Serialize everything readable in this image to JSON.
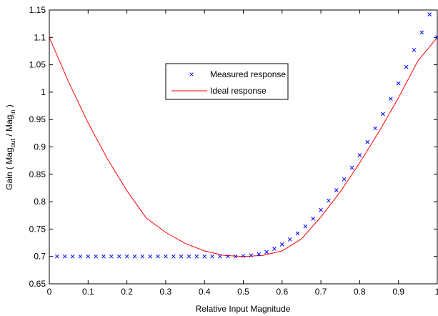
{
  "chart_data": {
    "type": "line",
    "xlabel": "Relative Input Magnitude",
    "ylabel": {
      "prefix": "Gain ( Mag",
      "sub1": "out",
      "middle": " / Mag",
      "sub2": "in",
      "suffix": " )"
    },
    "xlim": [
      0,
      1
    ],
    "ylim": [
      0.65,
      1.15
    ],
    "xticks": [
      0,
      0.1,
      0.2,
      0.3,
      0.4,
      0.5,
      0.6,
      0.7,
      0.8,
      0.9,
      1
    ],
    "xtick_labels": [
      "0",
      "0.1",
      "0.2",
      "0.3",
      "0.4",
      "0.5",
      "0.6",
      "0.7",
      "0.8",
      "0.9",
      "1"
    ],
    "yticks": [
      0.65,
      0.7,
      0.75,
      0.8,
      0.85,
      0.9,
      0.95,
      1,
      1.05,
      1.1,
      1.15
    ],
    "ytick_labels": [
      "0.65",
      "0.7",
      "0.75",
      "0.8",
      "0.85",
      "0.9",
      "0.95",
      "1",
      "1.05",
      "1.1",
      "1.15"
    ],
    "grid": false,
    "legend_position": "upper-center",
    "series": [
      {
        "name": "Measured response",
        "style": "markers-x",
        "color": "#0000ff",
        "x": [
          0.02,
          0.04,
          0.06,
          0.08,
          0.1,
          0.12,
          0.14,
          0.16,
          0.18,
          0.2,
          0.22,
          0.24,
          0.26,
          0.28,
          0.3,
          0.32,
          0.34,
          0.36,
          0.38,
          0.4,
          0.42,
          0.44,
          0.46,
          0.48,
          0.5,
          0.52,
          0.54,
          0.56,
          0.58,
          0.6,
          0.62,
          0.64,
          0.66,
          0.68,
          0.7,
          0.72,
          0.74,
          0.76,
          0.78,
          0.8,
          0.82,
          0.84,
          0.86,
          0.88,
          0.9,
          0.92,
          0.94,
          0.96,
          0.98,
          1.0
        ],
        "y": [
          0.7,
          0.7,
          0.7,
          0.7,
          0.7,
          0.7,
          0.7,
          0.7,
          0.7,
          0.7,
          0.7,
          0.7,
          0.7,
          0.7,
          0.7,
          0.7,
          0.7,
          0.7,
          0.7,
          0.7,
          0.7,
          0.7,
          0.7,
          0.7,
          0.701,
          0.702,
          0.704,
          0.708,
          0.714,
          0.722,
          0.731,
          0.742,
          0.755,
          0.769,
          0.785,
          0.802,
          0.821,
          0.841,
          0.862,
          0.885,
          0.909,
          0.934,
          0.96,
          0.988,
          1.016,
          1.046,
          1.077,
          1.109,
          1.142,
          1.1
        ]
      },
      {
        "name": "Ideal response",
        "style": "line",
        "color": "#ff0000",
        "x": [
          0.0,
          0.05,
          0.1,
          0.15,
          0.2,
          0.25,
          0.3,
          0.35,
          0.4,
          0.45,
          0.5,
          0.55,
          0.6,
          0.65,
          0.7,
          0.75,
          0.8,
          0.85,
          0.9,
          0.95,
          1.0
        ],
        "y": [
          1.1,
          1.018,
          0.944,
          0.878,
          0.82,
          0.77,
          0.744,
          0.724,
          0.71,
          0.702,
          0.7,
          0.702,
          0.71,
          0.732,
          0.772,
          0.818,
          0.871,
          0.928,
          0.99,
          1.057,
          1.1
        ]
      }
    ]
  },
  "colors": {
    "measured": "#0000ff",
    "ideal": "#ff0000",
    "axes": "#000000",
    "background": "#ffffff"
  }
}
